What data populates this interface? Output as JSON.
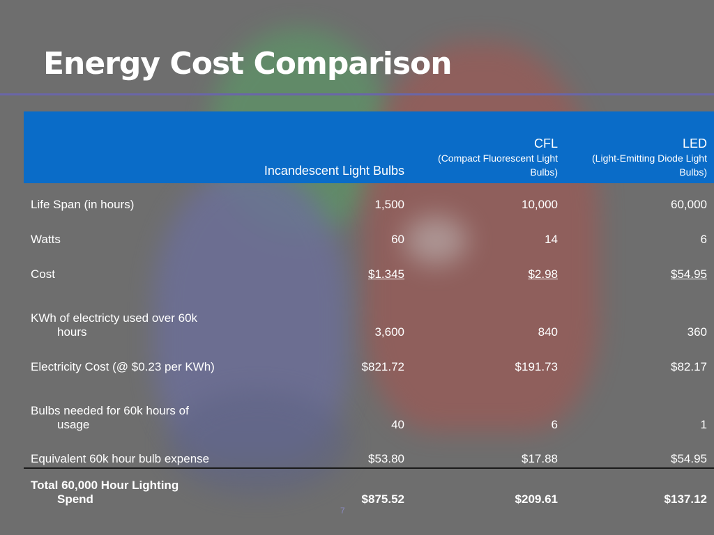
{
  "slide": {
    "title": "Energy Cost Comparison",
    "page_number": "7"
  },
  "table": {
    "headers": {
      "incandescent": "Incandescent Light Bulbs",
      "cfl_main": "CFL",
      "cfl_sub": "(Compact Fluorescent Light Bulbs)",
      "led_main": "LED",
      "led_sub": "(Light-Emitting Diode Light Bulbs)"
    },
    "rows": {
      "life": {
        "label": "Life Span (in hours)",
        "incandescent": "1,500",
        "cfl": "10,000",
        "led": "60,000"
      },
      "watts": {
        "label": "Watts",
        "incandescent": "60",
        "cfl": "14",
        "led": "6"
      },
      "cost": {
        "label": "Cost",
        "incandescent": "$1.345",
        "cfl": "$2.98",
        "led": "$54.95"
      },
      "kwh": {
        "label_line1": "KWh of electricty used over 60k",
        "label_line2": "hours",
        "incandescent": "3,600",
        "cfl": "840",
        "led": "360"
      },
      "elec": {
        "label": "Electricity Cost (@ $0.23 per KWh)",
        "incandescent": "$821.72",
        "cfl": "$191.73",
        "led": "$82.17"
      },
      "bulbs": {
        "label_line1": "Bulbs needed for 60k hours of",
        "label_line2": "usage",
        "incandescent": "40",
        "cfl": "6",
        "led": "1"
      },
      "equiv": {
        "label": "Equivalent 60k hour bulb expense",
        "incandescent": "$53.80",
        "cfl": "$17.88",
        "led": "$54.95"
      },
      "total": {
        "label_line1": "Total 60,000 Hour Lighting",
        "label_line2": "Spend",
        "incandescent": "$875.52",
        "cfl": "$209.61",
        "led": "$137.12"
      }
    }
  },
  "colors": {
    "background": "#6e6e6e",
    "header_fill": "#0a6cc8",
    "title_rule": "#6a66a8",
    "text": "#ffffff"
  }
}
